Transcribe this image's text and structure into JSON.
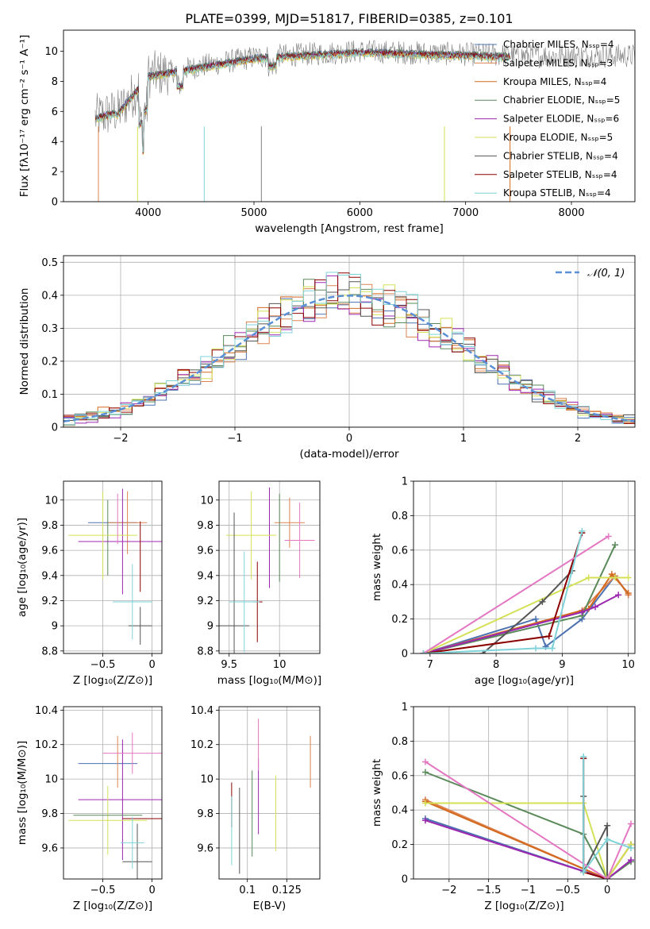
{
  "figure": {
    "title": "PLATE=0399, MJD=51817, FIBERID=0385, z=0.101"
  },
  "chart_data": [
    {
      "id": "spectrum",
      "type": "line",
      "xlabel": "wavelength [Angstrom, rest frame]",
      "ylabel": "Flux [fλ10⁻¹⁷ erg cm⁻² s⁻¹ A⁻¹]",
      "xlim": [
        3200,
        8600
      ],
      "ylim": [
        0,
        11.4
      ],
      "xticks": [
        4000,
        5000,
        6000,
        7000,
        8000
      ],
      "yticks": [
        0,
        2,
        4,
        6,
        8,
        10
      ],
      "grid": false,
      "legend": "upper-right",
      "series": [
        {
          "name": "Chabrier MILES, Nₛₛₚ=4",
          "color": "#4c72b0"
        },
        {
          "name": "Salpeter MILES, Nₛₛₚ=3",
          "color": "#dd8452"
        },
        {
          "name": "Kroupa MILES, Nₛₛₚ=4",
          "color": "#d2691e"
        },
        {
          "name": "Chabrier ELODIE, Nₛₛₚ=5",
          "color": "#5a8a5a"
        },
        {
          "name": "Salpeter ELODIE, Nₛₛₚ=6",
          "color": "#9c27b0"
        },
        {
          "name": "Kroupa ELODIE, Nₛₛₚ=5",
          "color": "#d4e157"
        },
        {
          "name": "Chabrier STELIB, Nₛₛₚ=4",
          "color": "#555555"
        },
        {
          "name": "Salpeter STELIB, Nₛₛₚ=4",
          "color": "#8b0000"
        },
        {
          "name": "Kroupa STELIB, Nₛₛₚ=4",
          "color": "#7fd3d8"
        }
      ],
      "data_line_color": "#808080"
    },
    {
      "id": "residuals",
      "type": "line",
      "xlabel": "(data-model)/error",
      "ylabel": "Normed distribution",
      "xlim": [
        -2.5,
        2.5
      ],
      "ylim": [
        0,
        0.52
      ],
      "xticks": [
        -2,
        -1,
        0,
        1,
        2
      ],
      "yticks": [
        0,
        0.1,
        0.2,
        0.3,
        0.4,
        0.5
      ],
      "grid": true,
      "legend": "upper-right",
      "gaussian": {
        "name": "𝒩(0, 1)",
        "color": "#5b8fd6",
        "mean": 0,
        "sigma": 1
      }
    },
    {
      "id": "age-vs-Z",
      "type": "scatter",
      "xlabel": "Z [log₁₀(Z/Z⊙)]",
      "ylabel": "age  [log₁₀(age/yr)]",
      "xlim": [
        -0.9,
        0.1
      ],
      "ylim": [
        8.78,
        10.15
      ],
      "xticks": [
        -0.5,
        0.0
      ],
      "yticks": [
        8.8,
        9.0,
        9.2,
        9.4,
        9.6,
        9.8,
        10.0
      ],
      "grid": true
    },
    {
      "id": "age-vs-mass",
      "type": "scatter",
      "xlabel": "mass [log₁₀(M/M⊙)]",
      "ylabel": "",
      "xlim": [
        9.4,
        10.4
      ],
      "ylim": [
        8.78,
        10.15
      ],
      "xticks": [
        9.5,
        10.0
      ],
      "yticks": [
        8.8,
        9.0,
        9.2,
        9.4,
        9.6,
        9.8,
        10.0
      ],
      "grid": true
    },
    {
      "id": "mass-weight-vs-age",
      "type": "line",
      "xlabel": "age  [log₁₀(age/yr)]",
      "ylabel": "mass weight",
      "xlim": [
        6.75,
        10.1
      ],
      "ylim": [
        0,
        1.0
      ],
      "xticks": [
        7,
        8,
        9,
        10
      ],
      "yticks": [
        0.0,
        0.2,
        0.4,
        0.6,
        0.8,
        1.0
      ],
      "grid": true,
      "series": [
        {
          "color": "#4c72b0",
          "x": [
            6.9,
            8.6,
            8.75,
            9.3,
            9.8,
            10.0
          ],
          "y": [
            0.0,
            0.2,
            0.04,
            0.2,
            0.45,
            0.34
          ]
        },
        {
          "color": "#dd8452",
          "x": [
            6.9,
            9.3,
            9.8,
            10.0
          ],
          "y": [
            0.0,
            0.25,
            0.45,
            0.34
          ]
        },
        {
          "color": "#d2691e",
          "x": [
            6.9,
            9.4,
            9.75,
            10.0
          ],
          "y": [
            0.0,
            0.26,
            0.46,
            0.35
          ]
        },
        {
          "color": "#5a8a5a",
          "x": [
            6.9,
            9.3,
            9.8
          ],
          "y": [
            0.0,
            0.22,
            0.63
          ]
        },
        {
          "color": "#9c27b0",
          "x": [
            6.9,
            9.3,
            9.5,
            9.85
          ],
          "y": [
            0.0,
            0.24,
            0.27,
            0.34
          ]
        },
        {
          "color": "#d4e157",
          "x": [
            6.9,
            9.4,
            9.8,
            10.0
          ],
          "y": [
            0.0,
            0.44,
            0.44,
            0.44
          ]
        },
        {
          "color": "#555555",
          "x": [
            7.8,
            8.7,
            9.15
          ],
          "y": [
            0.0,
            0.3,
            0.48
          ]
        },
        {
          "color": "#8b0000",
          "x": [
            6.9,
            8.8,
            9.3
          ],
          "y": [
            0.0,
            0.1,
            0.7
          ]
        },
        {
          "color": "#e377c2",
          "x": [
            6.9,
            9.7
          ],
          "y": [
            0.0,
            0.68
          ]
        },
        {
          "color": "#7fd3d8",
          "x": [
            6.9,
            8.6,
            8.85,
            9.3
          ],
          "y": [
            0.0,
            0.03,
            0.03,
            0.71
          ]
        }
      ]
    },
    {
      "id": "mass-vs-Z",
      "type": "scatter",
      "xlabel": "Z [log₁₀(Z/Z⊙)]",
      "ylabel": "mass [log₁₀(M/M⊙)]",
      "xlim": [
        -0.9,
        0.1
      ],
      "ylim": [
        9.42,
        10.42
      ],
      "xticks": [
        -0.5,
        0.0
      ],
      "yticks": [
        9.6,
        9.8,
        10.0,
        10.2,
        10.4
      ],
      "grid": true
    },
    {
      "id": "mass-vs-EBV",
      "type": "scatter",
      "xlabel": "E(B-V)",
      "ylabel": "",
      "xlim": [
        0.082,
        0.146
      ],
      "ylim": [
        9.42,
        10.42
      ],
      "xticks": [
        0.1,
        0.125
      ],
      "yticks": [
        9.6,
        9.8,
        10.0,
        10.2,
        10.4
      ],
      "grid": true
    },
    {
      "id": "mass-weight-vs-Z",
      "type": "line",
      "xlabel": "Z [log₁₀(Z/Z⊙)]",
      "ylabel": "mass weight",
      "xlim": [
        -2.45,
        0.35
      ],
      "ylim": [
        0,
        1.0
      ],
      "xticks": [
        -2.0,
        -1.5,
        -1.0,
        -0.5,
        0.0
      ],
      "yticks": [
        0.0,
        0.2,
        0.4,
        0.6,
        0.8,
        1.0
      ],
      "grid": true,
      "series": [
        {
          "color": "#4c72b0",
          "x": [
            -2.3,
            0.0,
            0.3
          ],
          "y": [
            0.35,
            0.0,
            0.2
          ]
        },
        {
          "color": "#dd8452",
          "x": [
            -2.3,
            0.0,
            0.3
          ],
          "y": [
            0.46,
            0.0,
            0.2
          ]
        },
        {
          "color": "#d2691e",
          "x": [
            -2.3,
            0.0,
            0.3
          ],
          "y": [
            0.45,
            0.0,
            0.2
          ]
        },
        {
          "color": "#5a8a5a",
          "x": [
            -2.3,
            -0.3,
            0.0,
            0.3
          ],
          "y": [
            0.62,
            0.26,
            0.0,
            0.1
          ]
        },
        {
          "color": "#9c27b0",
          "x": [
            -2.3,
            0.0,
            0.3
          ],
          "y": [
            0.34,
            0.0,
            0.11
          ]
        },
        {
          "color": "#d4e157",
          "x": [
            -2.3,
            -0.3,
            0.0,
            0.3
          ],
          "y": [
            0.44,
            0.44,
            0.0,
            0.2
          ]
        },
        {
          "color": "#555555",
          "x": [
            -0.3,
            -0.3,
            0.0,
            0.0
          ],
          "y": [
            0.48,
            0.04,
            0.31,
            0.0
          ]
        },
        {
          "color": "#8b0000",
          "x": [
            -0.3,
            -0.3,
            0.0
          ],
          "y": [
            0.7,
            0.04,
            0.0
          ]
        },
        {
          "color": "#e377c2",
          "x": [
            -2.3,
            0.0,
            0.3
          ],
          "y": [
            0.68,
            0.0,
            0.32
          ]
        },
        {
          "color": "#7fd3d8",
          "x": [
            -0.3,
            -0.3,
            0.0,
            0.3
          ],
          "y": [
            0.71,
            0.04,
            0.23,
            0.18
          ]
        }
      ]
    }
  ]
}
